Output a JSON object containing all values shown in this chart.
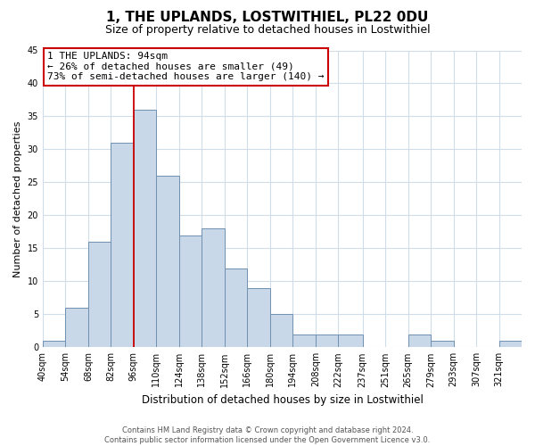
{
  "title": "1, THE UPLANDS, LOSTWITHIEL, PL22 0DU",
  "subtitle": "Size of property relative to detached houses in Lostwithiel",
  "xlabel": "Distribution of detached houses by size in Lostwithiel",
  "ylabel": "Number of detached properties",
  "bin_labels": [
    "40sqm",
    "54sqm",
    "68sqm",
    "82sqm",
    "96sqm",
    "110sqm",
    "124sqm",
    "138sqm",
    "152sqm",
    "166sqm",
    "180sqm",
    "194sqm",
    "208sqm",
    "222sqm",
    "237sqm",
    "251sqm",
    "265sqm",
    "279sqm",
    "293sqm",
    "307sqm",
    "321sqm"
  ],
  "bar_values": [
    1,
    6,
    16,
    31,
    36,
    26,
    17,
    18,
    12,
    9,
    5,
    2,
    2,
    2,
    0,
    0,
    2,
    1,
    0,
    0,
    1
  ],
  "bin_edges": [
    40,
    54,
    68,
    82,
    96,
    110,
    124,
    138,
    152,
    166,
    180,
    194,
    208,
    222,
    237,
    251,
    265,
    279,
    293,
    307,
    321,
    335
  ],
  "bar_color": "#c8d8e8",
  "bar_edge_color": "#7090b0",
  "vline_color": "#cc0000",
  "vline_x": 96,
  "annotation_line1": "1 THE UPLANDS: 94sqm",
  "annotation_line2": "← 26% of detached houses are smaller (49)",
  "annotation_line3": "73% of semi-detached houses are larger (140) →",
  "ylim": [
    0,
    45
  ],
  "yticks": [
    0,
    5,
    10,
    15,
    20,
    25,
    30,
    35,
    40,
    45
  ],
  "footer_line1": "Contains HM Land Registry data © Crown copyright and database right 2024.",
  "footer_line2": "Contains public sector information licensed under the Open Government Licence v3.0.",
  "background_color": "#ffffff",
  "grid_color": "#d0dde8",
  "title_fontsize": 11,
  "subtitle_fontsize": 9,
  "ylabel_fontsize": 8,
  "xlabel_fontsize": 8.5
}
